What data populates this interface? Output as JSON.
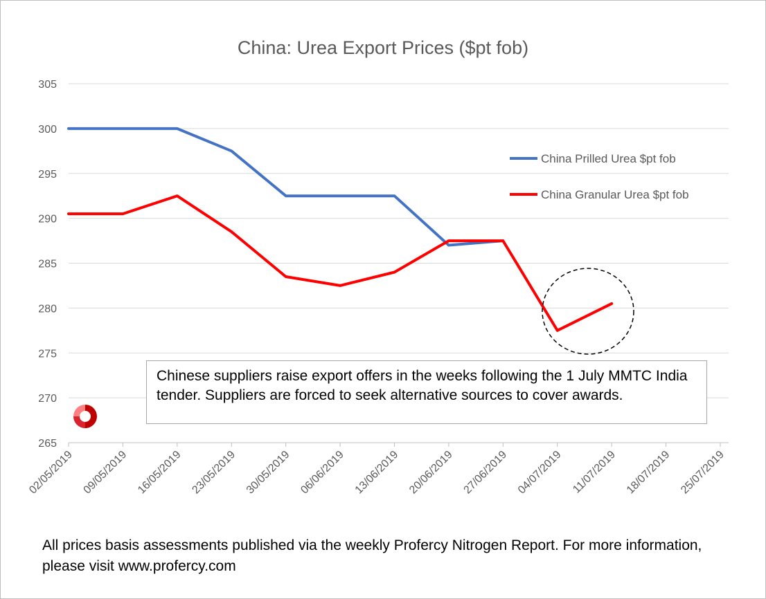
{
  "chart_data": {
    "type": "line",
    "title": "China: Urea Export Prices ($pt fob)",
    "xlabel": "",
    "ylabel": "",
    "ylim": [
      265,
      305
    ],
    "yticks": [
      265,
      270,
      275,
      280,
      285,
      290,
      295,
      300,
      305
    ],
    "x_tick_labels": [
      "02/05/2019",
      "09/05/2019",
      "16/05/2019",
      "23/05/2019",
      "30/05/2019",
      "06/06/2019",
      "13/06/2019",
      "20/06/2019",
      "27/06/2019",
      "04/07/2019",
      "11/07/2019",
      "18/07/2019",
      "25/07/2019"
    ],
    "grid": "horizontal",
    "legend_position": "top-right",
    "series": [
      {
        "name": "China Prilled Urea $pt fob",
        "color": "#4472c4",
        "x": [
          "02/05/2019",
          "09/05/2019",
          "16/05/2019",
          "23/05/2019",
          "30/05/2019",
          "06/06/2019",
          "13/06/2019",
          "20/06/2019",
          "27/06/2019"
        ],
        "values": [
          300,
          300,
          300,
          297.5,
          292.5,
          292.5,
          292.5,
          287,
          287.5
        ]
      },
      {
        "name": "China Granular Urea $pt fob",
        "color": "#ff0000",
        "x": [
          "02/05/2019",
          "09/05/2019",
          "16/05/2019",
          "23/05/2019",
          "30/05/2019",
          "06/06/2019",
          "13/06/2019",
          "20/06/2019",
          "27/06/2019",
          "04/07/2019",
          "11/07/2019"
        ],
        "values": [
          290.5,
          290.5,
          292.5,
          288.5,
          283.5,
          282.5,
          284,
          287.5,
          287.5,
          277.5,
          280.5
        ]
      }
    ]
  },
  "annotation_text": "Chinese suppliers raise export offers in the weeks following the 1 July MMTC India tender. Suppliers are forced to seek alternative sources to cover awards.",
  "footer_text": "All prices basis assessments published via the weekly Profercy Nitrogen Report. For more information, please visit www.profercy.com",
  "logo": {
    "name": "profercy-logo",
    "colors": [
      "#c00000",
      "#ff8080"
    ]
  }
}
